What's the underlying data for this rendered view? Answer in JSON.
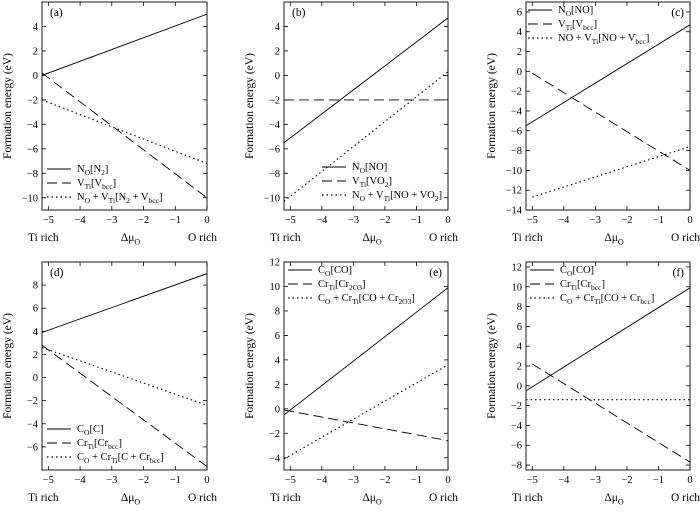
{
  "chart_data": [
    {
      "panel": "(a)",
      "type": "line",
      "ylabel": "Formation energy (eV)",
      "xlabel": "ΔμO",
      "x_left_label": "Ti rich",
      "x_right_label": "O rich",
      "xlim": [
        -5.2,
        0
      ],
      "ylim": [
        -11,
        6
      ],
      "xticks": [
        -5,
        -4,
        -3,
        -2,
        -1,
        0
      ],
      "yticks": [
        -10,
        -8,
        -6,
        -4,
        -2,
        0,
        2,
        4
      ],
      "legend_position": "bottom-left",
      "series": [
        {
          "name": "N_O[N_2]",
          "style": "solid",
          "x": [
            -5.2,
            0
          ],
          "y": [
            0.0,
            5.0
          ]
        },
        {
          "name": "V_Ti[V_bcc]",
          "style": "dashed",
          "x": [
            -5.2,
            0
          ],
          "y": [
            0.2,
            -10.0
          ]
        },
        {
          "name": "N_O + V_Ti[N_2 + V_bcc]",
          "style": "dotted",
          "x": [
            -5.2,
            0
          ],
          "y": [
            -2.0,
            -7.2
          ]
        }
      ]
    },
    {
      "panel": "(b)",
      "type": "line",
      "ylabel": "Formation energy (eV)",
      "xlabel": "ΔμO",
      "x_left_label": "Ti rich",
      "x_right_label": "O rich",
      "xlim": [
        -5.2,
        0
      ],
      "ylim": [
        -11,
        6
      ],
      "xticks": [
        -5,
        -4,
        -3,
        -2,
        -1,
        0
      ],
      "yticks": [
        -10,
        -8,
        -6,
        -4,
        -2,
        0,
        2,
        4
      ],
      "legend_position": "bottom-right",
      "series": [
        {
          "name": "N_O[NO]",
          "style": "solid",
          "x": [
            -5.2,
            0
          ],
          "y": [
            -5.5,
            4.7
          ]
        },
        {
          "name": "V_Ti[VO_2]",
          "style": "dashed",
          "x": [
            -5.2,
            0
          ],
          "y": [
            -2.0,
            -2.0
          ]
        },
        {
          "name": "N_O + V_Ti[NO + VO_2]",
          "style": "dotted",
          "x": [
            -5.2,
            0
          ],
          "y": [
            -10.3,
            0.3
          ]
        }
      ]
    },
    {
      "panel": "(c)",
      "type": "line",
      "ylabel": "Formation energy (eV)",
      "xlabel": "ΔμO",
      "x_left_label": "Ti rich",
      "x_right_label": "O rich",
      "xlim": [
        -5.2,
        0
      ],
      "ylim": [
        -14,
        7
      ],
      "xticks": [
        -5,
        -4,
        -3,
        -2,
        -1,
        0
      ],
      "yticks": [
        -14,
        -12,
        -10,
        -8,
        -6,
        -4,
        -2,
        0,
        2,
        4,
        6
      ],
      "legend_position": "top-left",
      "series": [
        {
          "name": "N_O[NO]",
          "style": "solid",
          "x": [
            -5.2,
            0
          ],
          "y": [
            -5.5,
            4.7
          ]
        },
        {
          "name": "V_Ti[V_bcc]",
          "style": "dashed",
          "x": [
            -5,
            0
          ],
          "y": [
            -0.2,
            -10.0
          ]
        },
        {
          "name": "NO + V_Ti[NO + V_bcc]",
          "style": "dotted",
          "x": [
            -5,
            0
          ],
          "y": [
            -12.7,
            -7.6
          ]
        }
      ]
    },
    {
      "panel": "(d)",
      "type": "line",
      "ylabel": "Formation energy (eV)",
      "xlabel": "ΔμO",
      "x_left_label": "Ti rich",
      "x_right_label": "O rich",
      "xlim": [
        -5.2,
        0
      ],
      "ylim": [
        -8,
        10
      ],
      "xticks": [
        -5,
        -4,
        -3,
        -2,
        -1,
        0
      ],
      "yticks": [
        -6,
        -4,
        -2,
        0,
        2,
        4,
        6,
        8
      ],
      "legend_position": "bottom-left",
      "series": [
        {
          "name": "C_O[C]",
          "style": "solid",
          "x": [
            -5.2,
            0
          ],
          "y": [
            3.9,
            9.0
          ]
        },
        {
          "name": "Cr_Ti[Cr_bcc]",
          "style": "dashed",
          "x": [
            -5.2,
            0
          ],
          "y": [
            2.8,
            -7.7
          ]
        },
        {
          "name": "C_O + Cr_Ti[C + Cr_bcc]",
          "style": "dotted",
          "x": [
            -5.2,
            0
          ],
          "y": [
            2.6,
            -2.4
          ]
        }
      ]
    },
    {
      "panel": "(e)",
      "type": "line",
      "ylabel": "Formation energy (eV)",
      "xlabel": "ΔμO",
      "x_left_label": "Ti rich",
      "x_right_label": "O rich",
      "xlim": [
        -5.2,
        0
      ],
      "ylim": [
        -5,
        12
      ],
      "xticks": [
        -5,
        -4,
        -3,
        -2,
        -1,
        0
      ],
      "yticks": [
        -4,
        -2,
        0,
        2,
        4,
        6,
        8,
        10,
        12
      ],
      "legend_position": "top-left",
      "series": [
        {
          "name": "C_O[CO]",
          "style": "solid",
          "x": [
            -5.2,
            0
          ],
          "y": [
            -0.5,
            9.9
          ]
        },
        {
          "name": "Cr_Ti[Cr_2O_3]",
          "style": "dashed",
          "x": [
            -5.2,
            0
          ],
          "y": [
            -0.1,
            -2.6
          ]
        },
        {
          "name": "C_O + Cr_Ti[CO + Cr_2O_3]",
          "style": "dotted",
          "x": [
            -5.2,
            0
          ],
          "y": [
            -4.1,
            3.6
          ]
        }
      ]
    },
    {
      "panel": "(f)",
      "type": "line",
      "ylabel": "Formation energy (eV)",
      "xlabel": "ΔμO",
      "x_left_label": "Ti rich",
      "x_right_label": "O rich",
      "xlim": [
        -5.2,
        0
      ],
      "ylim": [
        -8.5,
        12.5
      ],
      "xticks": [
        -5,
        -4,
        -3,
        -2,
        -1,
        0
      ],
      "yticks": [
        -8,
        -6,
        -4,
        -2,
        0,
        2,
        4,
        6,
        8,
        10,
        12
      ],
      "legend_position": "top-left",
      "series": [
        {
          "name": "C_O[CO]",
          "style": "solid",
          "x": [
            -5.2,
            0
          ],
          "y": [
            -0.5,
            9.9
          ]
        },
        {
          "name": "Cr_Ti[Cr_bcc]",
          "style": "dashed",
          "x": [
            -5,
            0
          ],
          "y": [
            2.2,
            -7.7
          ]
        },
        {
          "name": "C_O + Cr_Ti[CO + Cr_bcc]",
          "style": "dotted",
          "x": [
            -5.2,
            0
          ],
          "y": [
            -1.4,
            -1.4
          ]
        }
      ]
    }
  ]
}
